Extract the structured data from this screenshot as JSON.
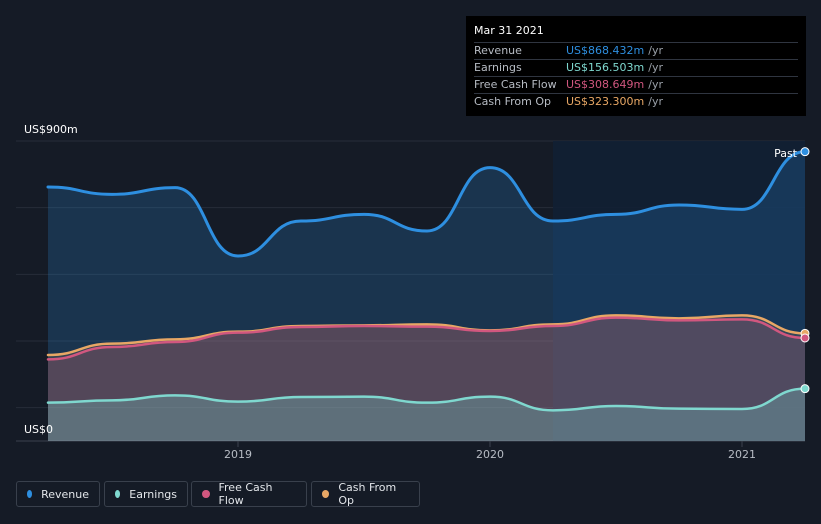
{
  "chart_data": {
    "type": "area",
    "y_unit_label_top": "US$900m",
    "y_unit_label_bottom": "US$0",
    "ylim": [
      0,
      900
    ],
    "x_ticks": [
      {
        "label": "2019",
        "value": 2019.0
      },
      {
        "label": "2020",
        "value": 2020.0
      },
      {
        "label": "2021",
        "value": 2021.0
      }
    ],
    "past_label": "Past",
    "series": [
      {
        "name": "Revenue",
        "color": "#2e8fe0",
        "x": [
          2018.25,
          2018.5,
          2018.75,
          2019.0,
          2019.25,
          2019.5,
          2019.75,
          2020.0,
          2020.25,
          2020.5,
          2020.75,
          2021.0,
          2021.25
        ],
        "values": [
          762,
          740,
          760,
          555,
          660,
          680,
          630,
          820,
          660,
          680,
          708,
          695,
          868
        ]
      },
      {
        "name": "Earnings",
        "color": "#7fd8cf",
        "x": [
          2018.25,
          2018.5,
          2018.75,
          2019.0,
          2019.25,
          2019.5,
          2019.75,
          2020.0,
          2020.25,
          2020.5,
          2020.75,
          2021.0,
          2021.25
        ],
        "values": [
          115,
          122,
          137,
          118,
          132,
          133,
          115,
          133,
          92,
          105,
          97,
          96,
          157
        ]
      },
      {
        "name": "Free Cash Flow",
        "color": "#d1577f",
        "x": [
          2018.25,
          2018.5,
          2018.75,
          2019.0,
          2019.25,
          2019.5,
          2019.75,
          2020.0,
          2020.25,
          2020.5,
          2020.75,
          2021.0,
          2021.25
        ],
        "values": [
          245,
          282,
          297,
          325,
          342,
          345,
          343,
          330,
          345,
          370,
          362,
          365,
          309
        ]
      },
      {
        "name": "Cash From Op",
        "color": "#e8a765",
        "x": [
          2018.25,
          2018.5,
          2018.75,
          2019.0,
          2019.25,
          2019.5,
          2019.75,
          2020.0,
          2020.25,
          2020.5,
          2020.75,
          2021.0,
          2021.25
        ],
        "values": [
          258,
          292,
          305,
          328,
          345,
          347,
          350,
          332,
          350,
          377,
          368,
          377,
          323
        ]
      }
    ],
    "tooltip": {
      "date": "Mar 31 2021",
      "rows": [
        {
          "label": "Revenue",
          "value": "US$868.432m",
          "unit": "/yr",
          "color": "#2e8fe0"
        },
        {
          "label": "Earnings",
          "value": "US$156.503m",
          "unit": "/yr",
          "color": "#7fd8cf"
        },
        {
          "label": "Free Cash Flow",
          "value": "US$308.649m",
          "unit": "/yr",
          "color": "#d1577f"
        },
        {
          "label": "Cash From Op",
          "value": "US$323.300m",
          "unit": "/yr",
          "color": "#e8a765"
        }
      ]
    },
    "grid": true
  },
  "legend": [
    {
      "label": "Revenue",
      "color": "#2e8fe0"
    },
    {
      "label": "Earnings",
      "color": "#7fd8cf"
    },
    {
      "label": "Free Cash Flow",
      "color": "#d1577f"
    },
    {
      "label": "Cash From Op",
      "color": "#e8a765"
    }
  ]
}
